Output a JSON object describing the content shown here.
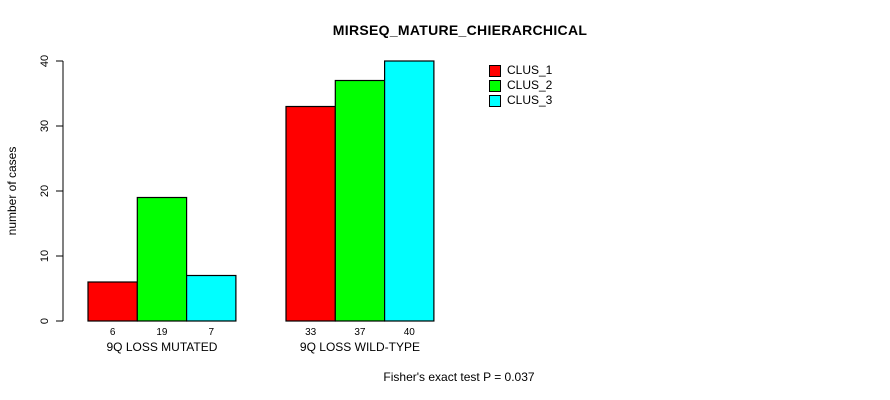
{
  "page": {
    "background": "#ffffff",
    "text_color": "#000000"
  },
  "chart_data": {
    "type": "bar",
    "title": "MIRSEQ_MATURE_CHIERARCHICAL",
    "xlabel": "",
    "ylabel": "number of cases",
    "ylim": [
      0,
      40
    ],
    "yticks": [
      0,
      10,
      20,
      30,
      40
    ],
    "grid": false,
    "legend_position": "top-right-inside",
    "categories": [
      "9Q LOSS MUTATED",
      "9Q LOSS WILD-TYPE"
    ],
    "series": [
      {
        "name": "CLUS_1",
        "color": "#ff0000",
        "values": [
          6,
          33
        ]
      },
      {
        "name": "CLUS_2",
        "color": "#00ff00",
        "values": [
          19,
          37
        ]
      },
      {
        "name": "CLUS_3",
        "color": "#00ffff",
        "values": [
          7,
          40
        ]
      }
    ],
    "bar_value_labels": [
      [
        6,
        19,
        7
      ],
      [
        33,
        37,
        40
      ]
    ],
    "footer": "Fisher's exact test P = 0.037",
    "bar_border_color": "#000000",
    "axis_color": "#000000"
  }
}
